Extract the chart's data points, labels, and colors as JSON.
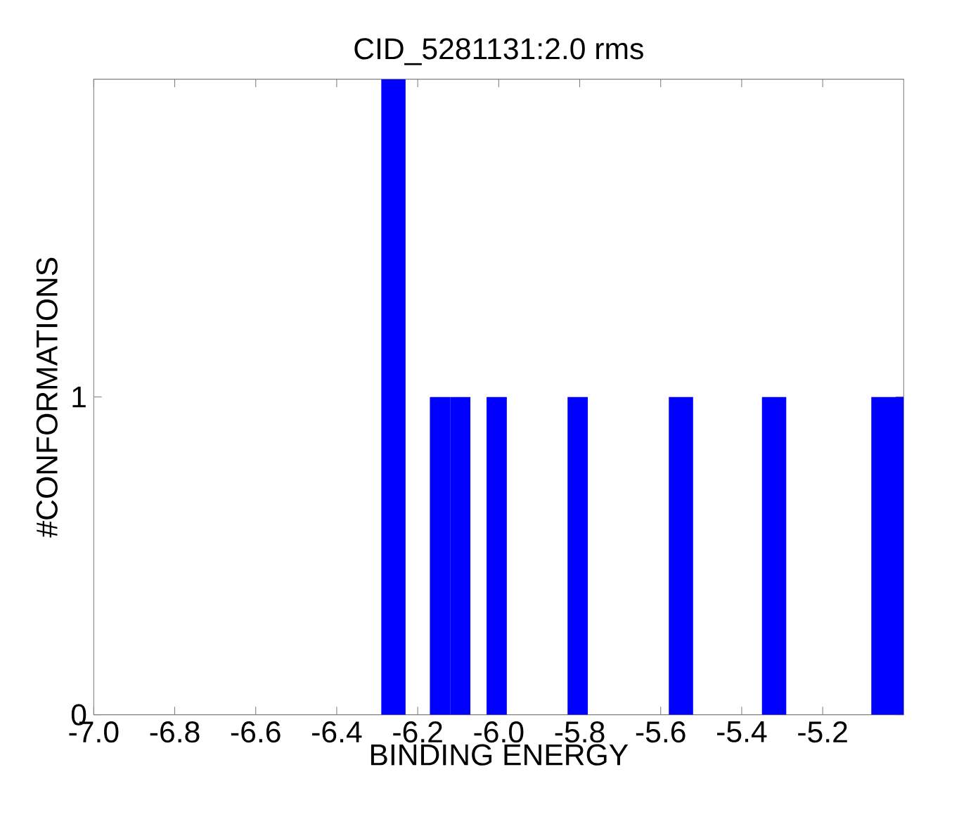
{
  "chart_data": {
    "type": "histogram",
    "title": "CID_5281131:2.0 rms",
    "xlabel": "BINDING ENERGY",
    "ylabel": "#CONFORMATIONS",
    "color": "#0000ff",
    "bins": [
      -6.29,
      -6.23,
      -6.17,
      -6.12,
      -6.07,
      -6.03,
      -5.98,
      -5.83,
      -5.78,
      -5.58,
      -5.52,
      -5.35,
      -5.29,
      -5.08,
      -5.0
    ],
    "values": [
      2,
      0,
      1,
      1,
      0,
      1,
      0,
      1,
      0,
      1,
      0,
      1,
      0,
      1
    ],
    "xlim": [
      -7,
      -5
    ],
    "ylim": [
      0,
      2
    ],
    "xticks": [
      {
        "value": -7,
        "label": "-7.0"
      },
      -6.8,
      -6.6,
      -6.4,
      -6.2,
      {
        "value": -6,
        "label": "-6.0"
      },
      -5.8,
      -5.6,
      -5.4,
      -5.2
    ],
    "yticks": [
      0,
      1
    ]
  }
}
